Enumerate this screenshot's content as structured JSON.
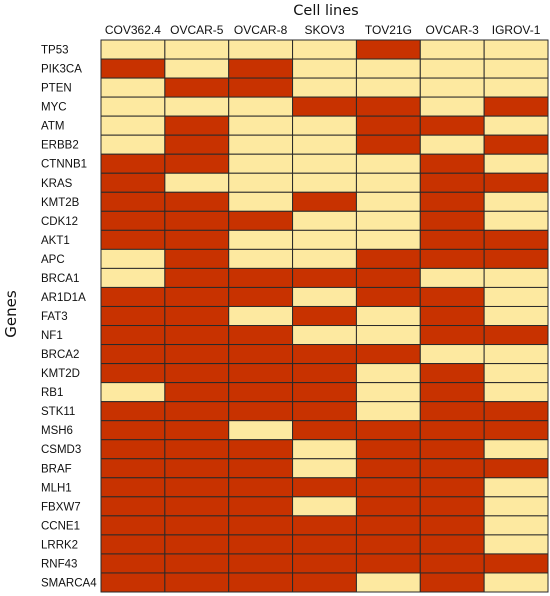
{
  "colors": {
    "mutated": "#c83200",
    "wildtype": "#fde9a0",
    "grid": "#2a2a2a"
  },
  "chart_data": {
    "type": "heatmap",
    "title": "Cell lines",
    "xlabel": "Cell lines",
    "ylabel": "Genes",
    "columns": [
      "COV362.4",
      "OVCAR-5",
      "OVCAR-8",
      "SKOV3",
      "TOV21G",
      "OVCAR-3",
      "IGROV-1"
    ],
    "rows": [
      "TP53",
      "PIK3CA",
      "PTEN",
      "MYC",
      "ATM",
      "ERBB2",
      "CTNNB1",
      "KRAS",
      "KMT2B",
      "CDK12",
      "AKT1",
      "APC",
      "BRCA1",
      "AR1D1A",
      "FAT3",
      "NF1",
      "BRCA2",
      "KMT2D",
      "RB1",
      "STK11",
      "MSH6",
      "CSMD3",
      "BRAF",
      "MLH1",
      "FBXW7",
      "CCNE1",
      "LRRK2",
      "RNF43",
      "SMARCA4"
    ],
    "values": [
      [
        0,
        0,
        0,
        0,
        1,
        0,
        0
      ],
      [
        1,
        0,
        1,
        0,
        0,
        0,
        0
      ],
      [
        0,
        1,
        1,
        0,
        0,
        0,
        0
      ],
      [
        0,
        0,
        0,
        1,
        1,
        0,
        1
      ],
      [
        0,
        1,
        0,
        0,
        1,
        1,
        0
      ],
      [
        0,
        1,
        0,
        0,
        1,
        0,
        1
      ],
      [
        1,
        1,
        0,
        0,
        0,
        1,
        0
      ],
      [
        1,
        0,
        0,
        0,
        0,
        1,
        1
      ],
      [
        1,
        1,
        0,
        1,
        0,
        1,
        0
      ],
      [
        1,
        1,
        1,
        0,
        0,
        1,
        0
      ],
      [
        1,
        1,
        0,
        0,
        0,
        1,
        1
      ],
      [
        0,
        1,
        0,
        0,
        1,
        1,
        1
      ],
      [
        0,
        1,
        1,
        1,
        1,
        0,
        0
      ],
      [
        1,
        1,
        1,
        0,
        1,
        1,
        0
      ],
      [
        1,
        1,
        0,
        1,
        0,
        1,
        0
      ],
      [
        1,
        1,
        1,
        0,
        0,
        1,
        1
      ],
      [
        1,
        1,
        1,
        1,
        1,
        0,
        0
      ],
      [
        1,
        1,
        1,
        1,
        0,
        1,
        0
      ],
      [
        0,
        1,
        1,
        1,
        0,
        1,
        0
      ],
      [
        1,
        1,
        1,
        1,
        0,
        1,
        1
      ],
      [
        1,
        1,
        0,
        1,
        1,
        1,
        1
      ],
      [
        1,
        1,
        1,
        0,
        1,
        1,
        0
      ],
      [
        1,
        1,
        1,
        0,
        1,
        1,
        1
      ],
      [
        1,
        1,
        1,
        1,
        1,
        1,
        0
      ],
      [
        1,
        1,
        1,
        0,
        1,
        1,
        0
      ],
      [
        1,
        1,
        1,
        1,
        1,
        1,
        0
      ],
      [
        1,
        1,
        1,
        1,
        1,
        1,
        0
      ],
      [
        1,
        1,
        1,
        1,
        1,
        1,
        1
      ],
      [
        1,
        1,
        1,
        1,
        0,
        1,
        0
      ]
    ]
  }
}
